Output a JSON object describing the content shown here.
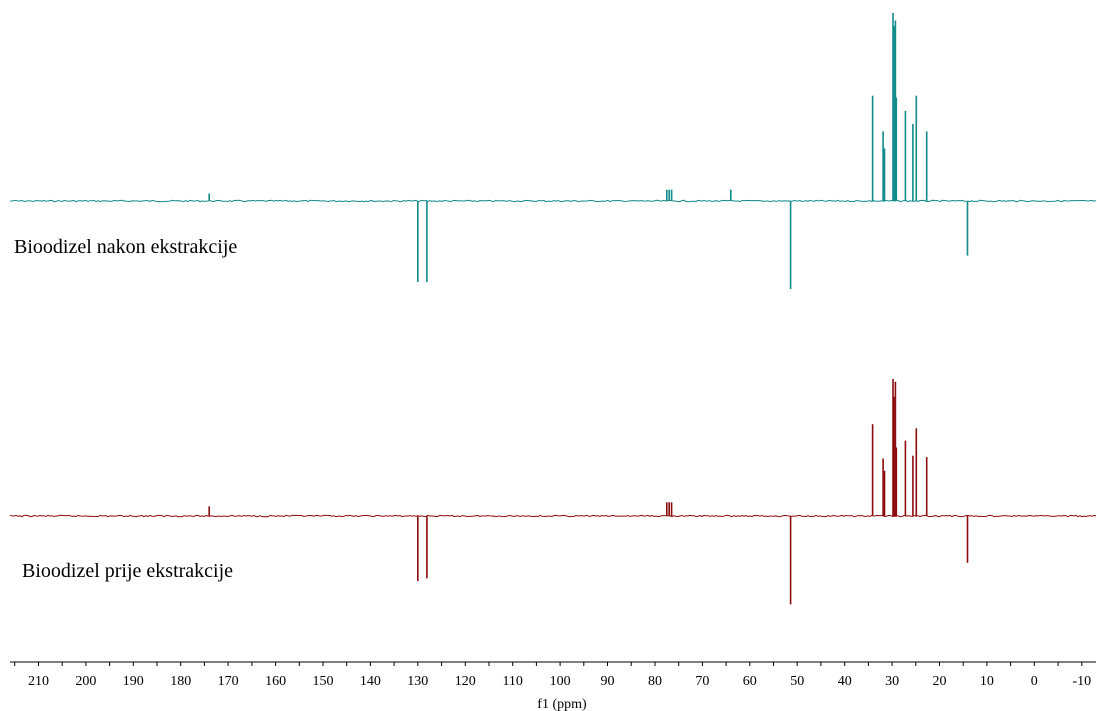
{
  "chart_data": {
    "type": "line",
    "title": "",
    "xlabel": "f1 (ppm)",
    "ylabel": "",
    "xlim": [
      216,
      -13
    ],
    "x_reversed": true,
    "x_ticks": [
      210,
      200,
      190,
      180,
      170,
      160,
      150,
      140,
      130,
      120,
      110,
      100,
      90,
      80,
      70,
      60,
      50,
      40,
      30,
      20,
      10,
      0,
      -10
    ],
    "x_tick_labels": [
      "210",
      "200",
      "190",
      "180",
      "170",
      "160",
      "150",
      "140",
      "130",
      "120",
      "110",
      "100",
      "90",
      "80",
      "70",
      "60",
      "50",
      "40",
      "30",
      "20",
      "10",
      "0",
      "-10"
    ],
    "x_minor_step": 5,
    "ylim": [
      -1,
      1
    ],
    "grid": false,
    "series": [
      {
        "name": "Bioodizel nakon ekstrakcije",
        "color": "#108a8a",
        "peaks": [
          [
            174.0,
            0.04
          ],
          [
            130.0,
            -0.46
          ],
          [
            128.1,
            -0.46
          ],
          [
            77.5,
            0.06
          ],
          [
            77.0,
            0.06
          ],
          [
            76.5,
            0.06
          ],
          [
            64.0,
            0.06
          ],
          [
            51.4,
            -0.5
          ],
          [
            34.1,
            0.56
          ],
          [
            31.9,
            0.37
          ],
          [
            31.6,
            0.28
          ],
          [
            29.8,
            1.0
          ],
          [
            29.6,
            0.93
          ],
          [
            29.3,
            0.96
          ],
          [
            29.1,
            0.55
          ],
          [
            27.2,
            0.48
          ],
          [
            25.6,
            0.41
          ],
          [
            24.9,
            0.56
          ],
          [
            22.7,
            0.37
          ],
          [
            14.1,
            -0.31
          ]
        ]
      },
      {
        "name": "Bioodizel prije ekstrakcije",
        "color": "#8c0b0b",
        "peaks": [
          [
            174.0,
            0.07
          ],
          [
            130.0,
            -0.5
          ],
          [
            128.1,
            -0.48
          ],
          [
            77.5,
            0.1
          ],
          [
            77.0,
            0.1
          ],
          [
            76.5,
            0.1
          ],
          [
            51.4,
            -0.68
          ],
          [
            34.1,
            0.67
          ],
          [
            31.9,
            0.42
          ],
          [
            31.6,
            0.33
          ],
          [
            29.8,
            1.0
          ],
          [
            29.6,
            0.87
          ],
          [
            29.3,
            0.98
          ],
          [
            29.1,
            0.5
          ],
          [
            27.2,
            0.55
          ],
          [
            25.6,
            0.44
          ],
          [
            24.9,
            0.64
          ],
          [
            22.7,
            0.43
          ],
          [
            14.1,
            -0.36
          ]
        ]
      }
    ]
  }
}
